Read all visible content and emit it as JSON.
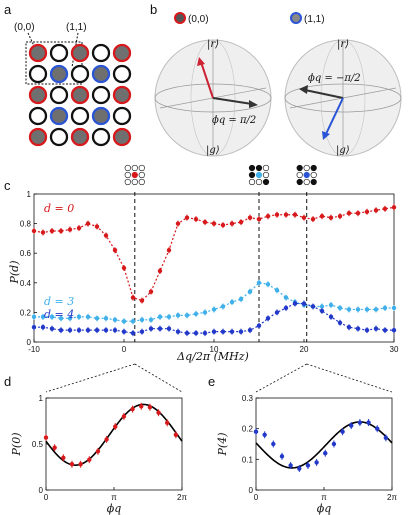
{
  "panel_labels": {
    "a": "a",
    "b": "b",
    "c": "c",
    "d": "d",
    "e": "e"
  },
  "panel_a": {
    "label_00": "(0,0)",
    "label_11": "(1,1)",
    "grid": [
      [
        "r",
        "o",
        "r",
        "o",
        "r"
      ],
      [
        "o",
        "b",
        "o",
        "b",
        "o"
      ],
      [
        "r",
        "o",
        "r",
        "o",
        "r"
      ],
      [
        "o",
        "b",
        "o",
        "b",
        "o"
      ],
      [
        "r",
        "o",
        "r",
        "o",
        "r"
      ]
    ]
  },
  "panel_b": {
    "left_title": "(0,0)",
    "right_title": "(1,1)",
    "left_phi": "ϕq = π/2",
    "right_phi": "ϕq = −π/2",
    "r_label": "|r⟩",
    "g_label": "|g⟩"
  },
  "chart_data": [
    {
      "type": "line",
      "panel": "c",
      "xlabel": "Δq/2π (MHz)",
      "ylabel": "P(d)",
      "xlim": [
        -10,
        30
      ],
      "ylim": [
        0,
        1
      ],
      "x_ticks": [
        "-10",
        "0",
        "10",
        "20",
        "30"
      ],
      "y_ticks": [
        "0",
        "0.2",
        "0.4",
        "0.6",
        "0.8",
        "1"
      ],
      "dashed_lines_x": [
        1.2,
        15,
        20.3
      ],
      "series": [
        {
          "name": "d = 0",
          "color": "#d7191c",
          "x": [
            -10,
            -9,
            -8,
            -7,
            -6,
            -5,
            -4,
            -3,
            -2,
            -1,
            0,
            1,
            2,
            3,
            4,
            5,
            6,
            7,
            8,
            9,
            10,
            11,
            12,
            13,
            14,
            15,
            16,
            17,
            18,
            19,
            20,
            21,
            22,
            23,
            24,
            25,
            26,
            27,
            28,
            29,
            30
          ],
          "y": [
            0.75,
            0.74,
            0.75,
            0.75,
            0.76,
            0.77,
            0.8,
            0.78,
            0.72,
            0.62,
            0.5,
            0.3,
            0.28,
            0.34,
            0.48,
            0.62,
            0.8,
            0.84,
            0.83,
            0.81,
            0.8,
            0.79,
            0.8,
            0.81,
            0.84,
            0.83,
            0.85,
            0.86,
            0.86,
            0.86,
            0.84,
            0.83,
            0.85,
            0.84,
            0.85,
            0.87,
            0.87,
            0.88,
            0.89,
            0.9,
            0.91
          ]
        },
        {
          "name": "d = 3",
          "color": "#3fb0ea",
          "x": [
            -10,
            -9,
            -8,
            -7,
            -6,
            -5,
            -4,
            -3,
            -2,
            -1,
            0,
            1,
            2,
            3,
            4,
            5,
            6,
            7,
            8,
            9,
            10,
            11,
            12,
            13,
            14,
            15,
            16,
            17,
            18,
            19,
            20,
            21,
            22,
            23,
            24,
            25,
            26,
            27,
            28,
            29,
            30
          ],
          "y": [
            0.17,
            0.17,
            0.17,
            0.16,
            0.16,
            0.17,
            0.17,
            0.16,
            0.16,
            0.15,
            0.14,
            0.14,
            0.15,
            0.15,
            0.17,
            0.17,
            0.18,
            0.18,
            0.19,
            0.2,
            0.22,
            0.24,
            0.27,
            0.29,
            0.34,
            0.4,
            0.39,
            0.35,
            0.3,
            0.27,
            0.25,
            0.24,
            0.24,
            0.25,
            0.23,
            0.22,
            0.22,
            0.22,
            0.22,
            0.23,
            0.23
          ]
        },
        {
          "name": "d = 4",
          "color": "#2138c8",
          "x": [
            -10,
            -9,
            -8,
            -7,
            -6,
            -5,
            -4,
            -3,
            -2,
            -1,
            0,
            1,
            2,
            3,
            4,
            5,
            6,
            7,
            8,
            9,
            10,
            11,
            12,
            13,
            14,
            15,
            16,
            17,
            18,
            19,
            20,
            21,
            22,
            23,
            24,
            25,
            26,
            27,
            28,
            29,
            30
          ],
          "y": [
            0.1,
            0.1,
            0.09,
            0.08,
            0.08,
            0.08,
            0.08,
            0.08,
            0.08,
            0.08,
            0.07,
            0.06,
            0.07,
            0.09,
            0.09,
            0.09,
            0.07,
            0.06,
            0.06,
            0.06,
            0.07,
            0.07,
            0.07,
            0.07,
            0.08,
            0.11,
            0.16,
            0.2,
            0.23,
            0.26,
            0.26,
            0.24,
            0.21,
            0.17,
            0.13,
            0.1,
            0.09,
            0.08,
            0.09,
            0.08,
            0.08
          ]
        }
      ],
      "series_labels": [
        "d = 0",
        "d = 3",
        "d = 4"
      ]
    },
    {
      "type": "scatter",
      "panel": "d",
      "xlabel": "ϕq",
      "ylabel": "P(0)",
      "xlim": [
        0,
        6.2832
      ],
      "ylim": [
        0,
        1
      ],
      "x_ticks": [
        "0",
        "π",
        "2π"
      ],
      "y_ticks": [
        "0",
        "0.5",
        "1"
      ],
      "series": [
        {
          "name": "",
          "color": "#d7191c",
          "x": [
            0,
            0.4,
            0.8,
            1.2,
            1.6,
            2.0,
            2.4,
            2.8,
            3.2,
            3.6,
            4.0,
            4.4,
            4.8,
            5.2,
            5.6,
            6.0
          ],
          "y": [
            0.57,
            0.46,
            0.35,
            0.28,
            0.28,
            0.33,
            0.42,
            0.55,
            0.69,
            0.8,
            0.88,
            0.91,
            0.9,
            0.84,
            0.73,
            0.6
          ]
        }
      ],
      "fit": {
        "color": "#000000",
        "offset": 0.6,
        "amplitude": 0.33,
        "phase": 4.5
      }
    },
    {
      "type": "scatter",
      "panel": "e",
      "xlabel": "ϕq",
      "ylabel": "P(4)",
      "xlim": [
        0,
        6.2832
      ],
      "ylim": [
        0,
        0.3
      ],
      "x_ticks": [
        "0",
        "π",
        "2π"
      ],
      "y_ticks": [
        "0",
        "0.1",
        "0.2",
        "0.3"
      ],
      "series": [
        {
          "name": "",
          "color": "#2138c8",
          "x": [
            0,
            0.4,
            0.8,
            1.2,
            1.6,
            2.0,
            2.4,
            2.8,
            3.2,
            3.6,
            4.0,
            4.4,
            4.8,
            5.2,
            5.6,
            6.0
          ],
          "y": [
            0.19,
            0.18,
            0.15,
            0.11,
            0.08,
            0.07,
            0.08,
            0.09,
            0.12,
            0.15,
            0.19,
            0.21,
            0.22,
            0.22,
            0.2,
            0.17
          ]
        }
      ],
      "fit": {
        "color": "#000000",
        "offset": 0.147,
        "amplitude": 0.075,
        "phase": 4.8
      }
    }
  ]
}
